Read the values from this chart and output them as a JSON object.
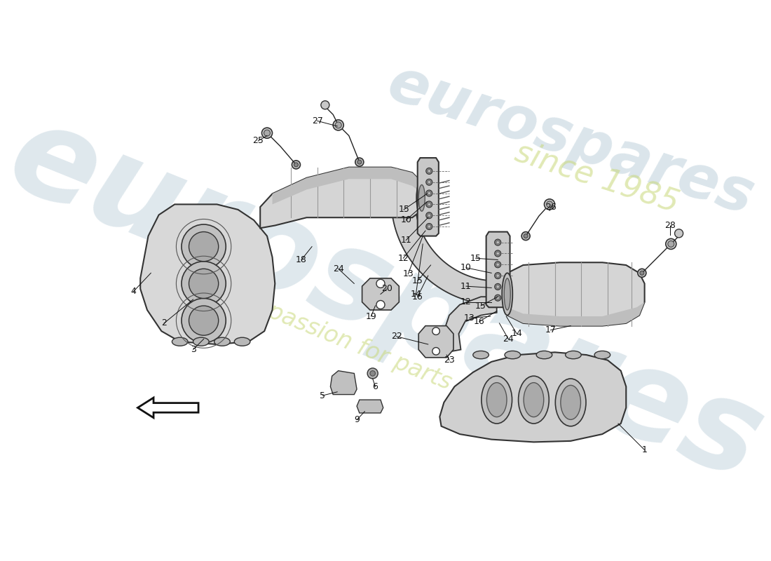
{
  "bg": "#ffffff",
  "wm1": "eurospares",
  "wm2": "a passion for parts since 1985",
  "wm3": "since 1985",
  "label_fontsize": 9,
  "label_color": "#111111",
  "line_color": "#1a1a1a",
  "part_color": "#e0e0e0",
  "part_edge": "#333333",
  "inner_color": "#c8c8c8",
  "dark_part": "#a0a0a0"
}
